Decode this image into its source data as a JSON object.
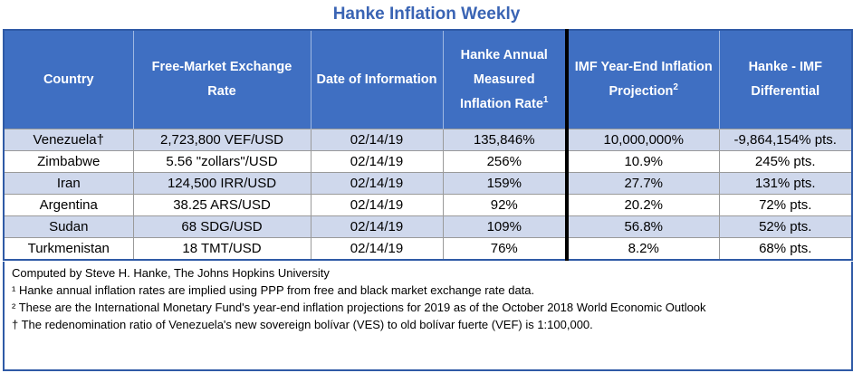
{
  "title": "Hanke Inflation Weekly",
  "table": {
    "headers": {
      "country": "Country",
      "exchange_rate": "Free-Market Exchange Rate",
      "date": "Date of Information",
      "hanke_rate": "Hanke Annual Measured Inflation Rate",
      "hanke_rate_sup": "1",
      "imf_projection": "IMF Year-End Inflation Projection",
      "imf_projection_sup": "2",
      "differential": "Hanke - IMF Differential"
    },
    "rows": [
      {
        "country": "Venezuela†",
        "exchange_rate": "2,723,800 VEF/USD",
        "date": "02/14/19",
        "hanke_rate": "135,846%",
        "imf_projection": "10,000,000%",
        "differential": "-9,864,154% pts."
      },
      {
        "country": "Zimbabwe",
        "exchange_rate": "5.56 \"zollars\"/USD",
        "date": "02/14/19",
        "hanke_rate": "256%",
        "imf_projection": "10.9%",
        "differential": "245% pts."
      },
      {
        "country": "Iran",
        "exchange_rate": "124,500 IRR/USD",
        "date": "02/14/19",
        "hanke_rate": "159%",
        "imf_projection": "27.7%",
        "differential": "131% pts."
      },
      {
        "country": "Argentina",
        "exchange_rate": "38.25 ARS/USD",
        "date": "02/14/19",
        "hanke_rate": "92%",
        "imf_projection": "20.2%",
        "differential": "72% pts."
      },
      {
        "country": "Sudan",
        "exchange_rate": "68 SDG/USD",
        "date": "02/14/19",
        "hanke_rate": "109%",
        "imf_projection": "56.8%",
        "differential": "52% pts."
      },
      {
        "country": "Turkmenistan",
        "exchange_rate": "18 TMT/USD",
        "date": "02/14/19",
        "hanke_rate": "76%",
        "imf_projection": "8.2%",
        "differential": "68% pts."
      }
    ]
  },
  "notes": {
    "credit": "Computed by Steve H. Hanke, The Johns Hopkins University",
    "note1": "¹ Hanke annual inflation rates are implied using PPP from free and black market exchange rate data.",
    "note2": "² These are the International Monetary Fund's year-end inflation projections for 2019 as of the October 2018 World Economic Outlook",
    "note3": "† The redenomination ratio of Venezuela's new sovereign bolívar (VES) to old bolívar fuerte (VEF) is 1:100,000."
  }
}
